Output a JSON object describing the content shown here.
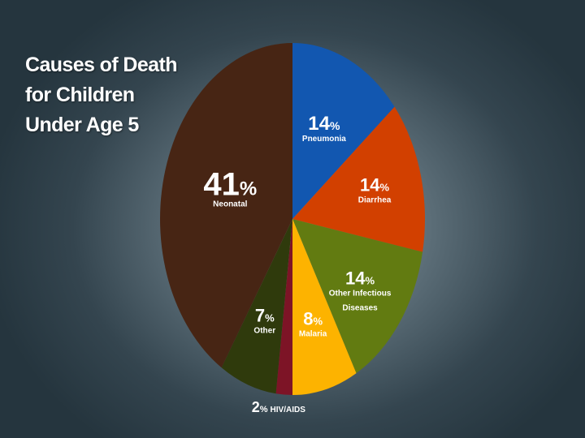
{
  "title_lines": [
    "Causes of Death",
    "for Children",
    "Under Age 5"
  ],
  "chart_data": {
    "type": "pie",
    "title": "Causes of Death for Children Under Age 5",
    "start_angle_deg": 0,
    "direction": "clockwise",
    "slices": [
      {
        "label": "Pneumonia",
        "value": 14,
        "color": "#1257b0"
      },
      {
        "label": "Diarrhea",
        "value": 14,
        "color": "#d24000"
      },
      {
        "label": "Other Infectious Diseases",
        "value": 14,
        "color": "#627b11"
      },
      {
        "label": "Malaria",
        "value": 8,
        "color": "#fdb300"
      },
      {
        "label": "HIV/AIDS",
        "value": 2,
        "color": "#7d1426"
      },
      {
        "label": "Other",
        "value": 7,
        "color": "#2f3a0c"
      },
      {
        "label": "Neonatal",
        "value": 41,
        "color": "#472514"
      }
    ],
    "unit": "%"
  }
}
